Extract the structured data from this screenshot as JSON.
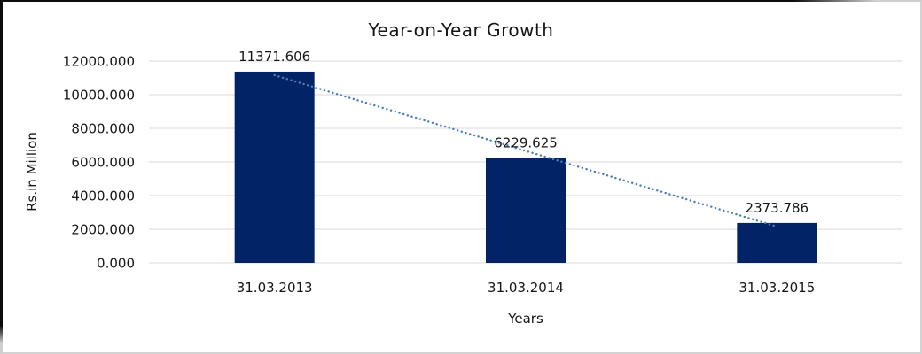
{
  "chart_data": {
    "type": "bar",
    "title": "Year-on-Year Growth",
    "categories": [
      "31.03.2013",
      "31.03.2014",
      "31.03.2015"
    ],
    "values": [
      11371.606,
      6229.625,
      2373.786
    ],
    "data_labels": [
      "11371.606",
      "6229.625",
      "2373.786"
    ],
    "xlabel": "Years",
    "ylabel": "Rs.in Million",
    "ylim": [
      0,
      12000
    ],
    "ytick_step": 2000,
    "ytick_labels": [
      "0.000",
      "2000.000",
      "4000.000",
      "6000.000",
      "8000.000",
      "10000.000",
      "12000.000"
    ],
    "grid": true,
    "legend": "none",
    "trendline": {
      "type": "linear",
      "style": "dotted",
      "color": "#4a7ebd"
    },
    "colors": {
      "bar": "#022366",
      "gridline": "#d9d9d9",
      "text": "#161616",
      "background": "#ffffff"
    }
  }
}
